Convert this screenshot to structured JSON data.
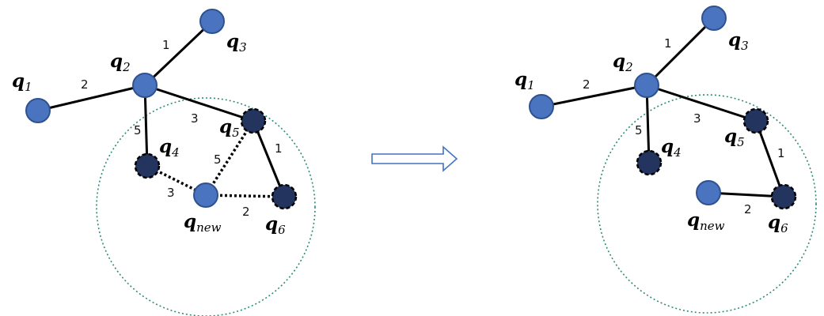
{
  "colors": {
    "node_fill": "#4a73c0",
    "node_stroke": "#2f528f",
    "near_node_fill": "#23345f",
    "edge": "#000000",
    "circle": "#2e8b7a",
    "arrow_stroke": "#4472c4"
  },
  "labels": {
    "q1": {
      "base": "q",
      "sub": "1"
    },
    "q2": {
      "base": "q",
      "sub": "2"
    },
    "q3": {
      "base": "q",
      "sub": "3"
    },
    "q4": {
      "base": "q",
      "sub": "4"
    },
    "q5": {
      "base": "q",
      "sub": "5"
    },
    "q6": {
      "base": "q",
      "sub": "6"
    },
    "qnew": {
      "base": "q",
      "sub": "new"
    }
  },
  "before": {
    "weights": {
      "q2_q3": "1",
      "q1_q2": "2",
      "q2_q5": "3",
      "q2_q4": "5",
      "q5_q6": "1",
      "q4_qnew": "3",
      "qnew_q5": "5",
      "qnew_q6": "2"
    }
  },
  "after": {
    "weights": {
      "q2_q3": "1",
      "q1_q2": "2",
      "q2_q5": "3",
      "q2_q4": "5",
      "q5_q6": "1",
      "qnew_q6": "2"
    }
  },
  "transition_arrow": "right-arrow"
}
